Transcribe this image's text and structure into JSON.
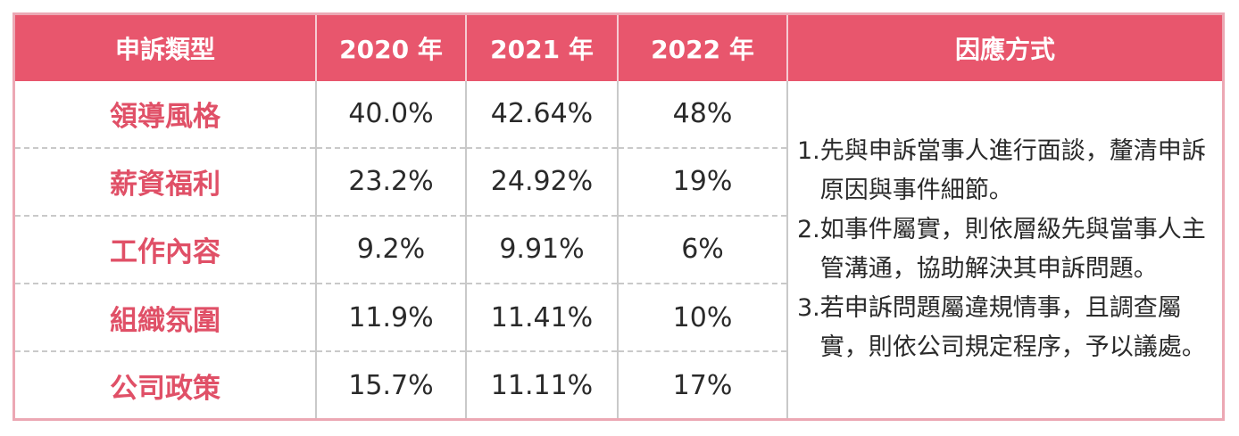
{
  "headers": [
    "申訴類型",
    "2020 年",
    "2021 年",
    "2022 年",
    "因應方式"
  ],
  "rows": [
    {
      "type": "領導風格",
      "y2020": "40.0%",
      "y2021": "42.64%",
      "y2022": "48%"
    },
    {
      "type": "薪資福利",
      "y2020": "23.2%",
      "y2021": "24.92%",
      "y2022": "19%"
    },
    {
      "type": "工作內容",
      "y2020": "9.2%",
      "y2021": "9.91%",
      "y2022": "6%"
    },
    {
      "type": "組織氛圍",
      "y2020": "11.9%",
      "y2021": "11.41%",
      "y2022": "10%"
    },
    {
      "type": "公司政策",
      "y2020": "15.7%",
      "y2021": "11.11%",
      "y2022": "17%"
    }
  ],
  "responses": [
    {
      "num": "1.",
      "text": "先與申訴當事人進行面談，釐清申訴原因與事件細節。"
    },
    {
      "num": "2.",
      "text": "如事件屬實，則依層級先與當事人主管溝通，協助解決其申訴問題。"
    },
    {
      "num": "3.",
      "text": "若申訴問題屬違規情事，且調查屬實，則依公司規定程序，予以議處。"
    }
  ],
  "colors": {
    "header_bg": "#e8566d",
    "type_text": "#e05067",
    "frame_border": "#eca8b4"
  }
}
